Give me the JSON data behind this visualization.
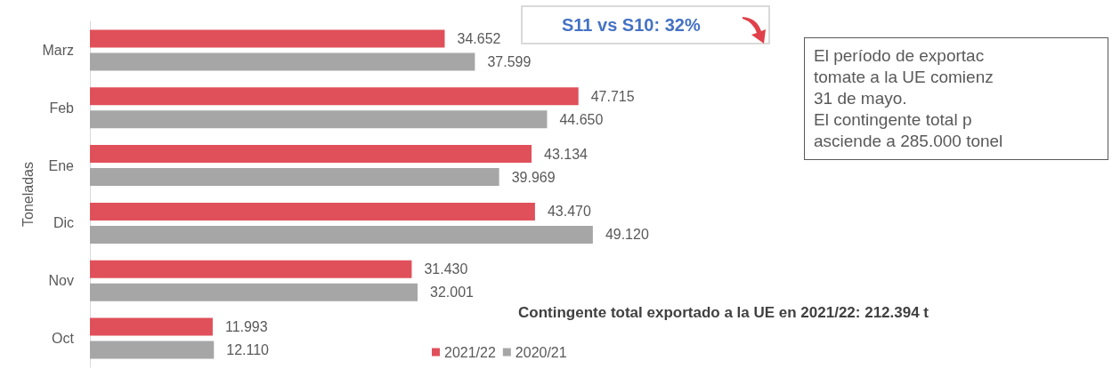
{
  "chart_data": {
    "type": "bar",
    "orientation": "horizontal",
    "ylabel": "Toneladas",
    "legend": "bottom",
    "categories": [
      "Marz",
      "Feb",
      "Ene",
      "Dic",
      "Nov",
      "Oct"
    ],
    "series": [
      {
        "name": "2021/22",
        "color": "#e0505a",
        "values": [
          34652,
          47715,
          43134,
          43470,
          31430,
          11993
        ],
        "value_labels": [
          "34.652",
          "47.715",
          "43.134",
          "43.470",
          "31.430",
          "11.993"
        ]
      },
      {
        "name": "2020/21",
        "color": "#a6a6a6",
        "values": [
          37599,
          44650,
          39969,
          49120,
          32001,
          12110
        ],
        "value_labels": [
          "37.599",
          "44.650",
          "39.969",
          "49.120",
          "32.001",
          "12.110"
        ]
      }
    ],
    "annotations": [
      "S11 vs S10: 32%",
      "El período de exportac\ntomate a la UE comienz\n31 de mayo.\nEl contingente total p\nasciende a 285.000 tonel",
      "Contingente total exportado a la UE en 2021/22: 212.394 t"
    ]
  }
}
